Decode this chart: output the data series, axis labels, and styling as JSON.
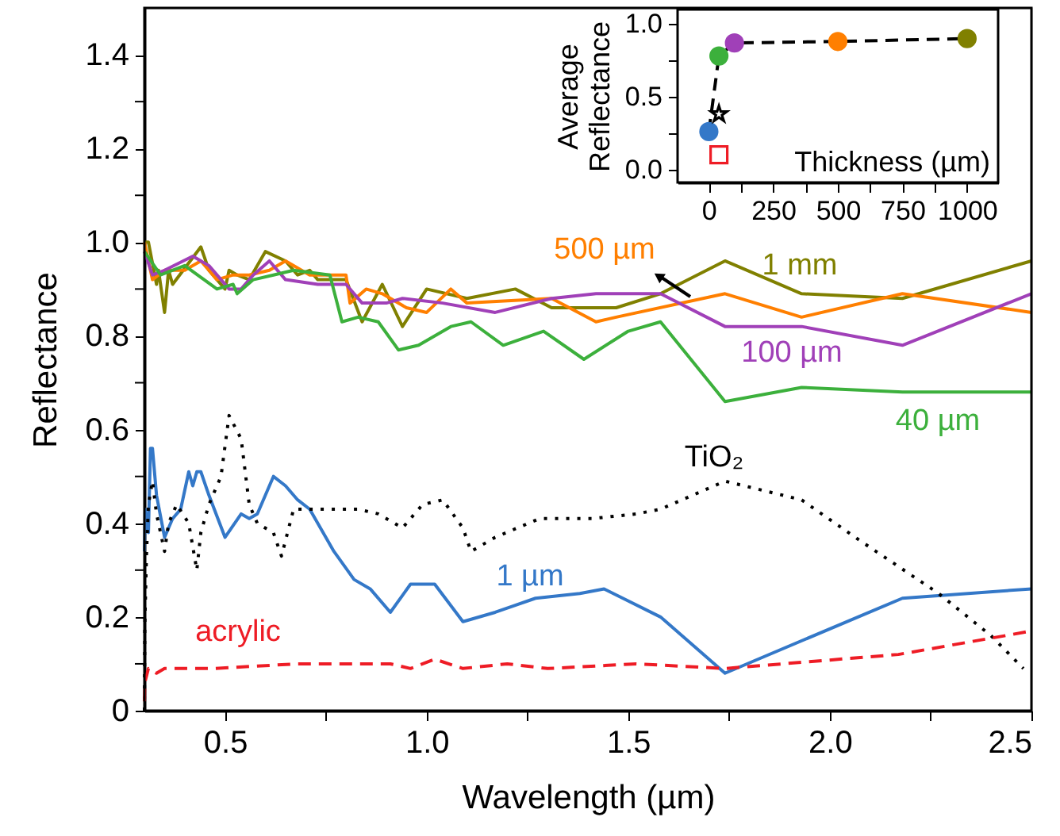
{
  "chart_data": [
    {
      "type": "line",
      "xlabel": "Wavelength (µm)",
      "ylabel": "Reflectance",
      "xlim": [
        0.3,
        2.5
      ],
      "ylim": [
        0,
        1.5
      ],
      "grid": false,
      "xticks": [
        0.5,
        {
          "value": 0.75,
          "label": null
        },
        {
          "value": 1,
          "label": "1.0"
        },
        {
          "value": 1.25,
          "label": null
        },
        1.5,
        {
          "value": 1.75,
          "label": null
        },
        {
          "value": 2,
          "label": "2.0"
        },
        {
          "value": 2.25,
          "label": null
        },
        2.5
      ],
      "yticks": [
        0,
        {
          "value": 0.1,
          "label": null
        },
        0.2,
        {
          "value": 0.3,
          "label": null
        },
        0.4,
        {
          "value": 0.5,
          "label": null
        },
        0.6,
        {
          "value": 0.7,
          "label": null
        },
        0.8,
        {
          "value": 0.9,
          "label": null
        },
        {
          "value": 1,
          "label": "1.0"
        },
        {
          "value": 1.1,
          "label": null
        },
        1.2,
        {
          "value": 1.3,
          "label": null
        },
        1.4
      ],
      "series": [
        {
          "name": "1 mm",
          "color": "#808000",
          "line_style": "solid",
          "x": [
            0.3,
            0.31,
            0.33,
            0.335,
            0.35,
            0.36,
            0.37,
            0.44,
            0.46,
            0.5,
            0.51,
            0.53,
            0.56,
            0.6,
            0.65,
            0.68,
            0.71,
            0.73,
            0.8,
            0.84,
            0.89,
            0.94,
            1.0,
            1.1,
            1.22,
            1.31,
            1.42,
            1.47,
            1.58,
            1.74,
            1.93,
            2.18,
            2.5
          ],
          "values": [
            1.0,
            1.0,
            0.91,
            0.94,
            0.85,
            0.94,
            0.91,
            0.99,
            0.94,
            0.9,
            0.94,
            0.93,
            0.92,
            0.98,
            0.96,
            0.93,
            0.94,
            0.92,
            0.92,
            0.83,
            0.91,
            0.82,
            0.9,
            0.88,
            0.9,
            0.86,
            0.86,
            0.86,
            0.89,
            0.96,
            0.89,
            0.88,
            0.96
          ]
        },
        {
          "name": "500 µm",
          "color": "#ff7f00",
          "line_style": "solid",
          "x": [
            0.3,
            0.32,
            0.35,
            0.4,
            0.44,
            0.48,
            0.52,
            0.56,
            0.61,
            0.65,
            0.71,
            0.8,
            0.81,
            0.85,
            0.89,
            0.95,
            1.0,
            1.06,
            1.1,
            1.31,
            1.42,
            1.47,
            1.74,
            1.93,
            2.18,
            2.5
          ],
          "values": [
            1.0,
            0.92,
            0.94,
            0.94,
            0.96,
            0.92,
            0.93,
            0.93,
            0.94,
            0.96,
            0.93,
            0.93,
            0.87,
            0.9,
            0.89,
            0.86,
            0.85,
            0.9,
            0.87,
            0.88,
            0.83,
            0.84,
            0.89,
            0.84,
            0.89,
            0.85
          ]
        },
        {
          "name": "100 µm",
          "color": "#a040b8",
          "line_style": "solid",
          "x": [
            0.3,
            0.32,
            0.35,
            0.42,
            0.46,
            0.51,
            0.54,
            0.57,
            0.61,
            0.65,
            0.73,
            0.8,
            0.84,
            0.9,
            0.94,
            1.04,
            1.17,
            1.31,
            1.42,
            1.47,
            1.58,
            1.74,
            1.93,
            2.18,
            2.5
          ],
          "values": [
            0.98,
            0.93,
            0.94,
            0.97,
            0.95,
            0.9,
            0.9,
            0.93,
            0.96,
            0.92,
            0.91,
            0.91,
            0.87,
            0.87,
            0.88,
            0.87,
            0.85,
            0.88,
            0.89,
            0.89,
            0.89,
            0.82,
            0.82,
            0.78,
            0.89
          ]
        },
        {
          "name": "40 µm",
          "color": "#3cb03c",
          "line_style": "solid",
          "x": [
            0.3,
            0.34,
            0.4,
            0.48,
            0.52,
            0.53,
            0.57,
            0.62,
            0.67,
            0.76,
            0.79,
            0.83,
            0.88,
            0.93,
            0.98,
            1.06,
            1.11,
            1.19,
            1.29,
            1.39,
            1.5,
            1.58,
            1.74,
            1.93,
            2.18,
            2.5
          ],
          "values": [
            0.98,
            0.93,
            0.95,
            0.9,
            0.91,
            0.89,
            0.92,
            0.93,
            0.94,
            0.93,
            0.83,
            0.84,
            0.83,
            0.77,
            0.78,
            0.82,
            0.83,
            0.78,
            0.81,
            0.75,
            0.81,
            0.83,
            0.66,
            0.69,
            0.68,
            0.68
          ]
        },
        {
          "name": "1 µm",
          "color": "#3478c8",
          "line_style": "solid",
          "x": [
            0.3,
            0.302,
            0.31,
            0.315,
            0.32,
            0.33,
            0.35,
            0.37,
            0.39,
            0.41,
            0.42,
            0.43,
            0.44,
            0.46,
            0.5,
            0.54,
            0.56,
            0.58,
            0.62,
            0.65,
            0.68,
            0.71,
            0.77,
            0.82,
            0.86,
            0.91,
            0.96,
            1.02,
            1.09,
            1.17,
            1.27,
            1.38,
            1.44,
            1.58,
            1.74,
            2.18,
            2.5
          ],
          "values": [
            0.34,
            0.43,
            0.38,
            0.56,
            0.56,
            0.46,
            0.37,
            0.41,
            0.43,
            0.51,
            0.48,
            0.51,
            0.51,
            0.46,
            0.37,
            0.42,
            0.41,
            0.42,
            0.5,
            0.48,
            0.45,
            0.43,
            0.34,
            0.28,
            0.26,
            0.21,
            0.27,
            0.27,
            0.19,
            0.21,
            0.24,
            0.25,
            0.26,
            0.2,
            0.08,
            0.24,
            0.26
          ]
        },
        {
          "name": "TiO₂",
          "color": "#000000",
          "line_style": "dotted",
          "x": [
            0.3,
            0.301,
            0.305,
            0.31,
            0.32,
            0.33,
            0.35,
            0.36,
            0.38,
            0.41,
            0.43,
            0.44,
            0.46,
            0.49,
            0.51,
            0.54,
            0.56,
            0.58,
            0.62,
            0.64,
            0.67,
            0.74,
            0.83,
            0.88,
            0.94,
            0.99,
            1.04,
            1.09,
            1.11,
            1.17,
            1.28,
            1.41,
            1.52,
            1.58,
            1.74,
            1.93,
            2.08,
            2.27,
            2.4,
            2.48
          ],
          "values": [
            0.0,
            0.18,
            0.33,
            0.44,
            0.49,
            0.42,
            0.34,
            0.4,
            0.44,
            0.4,
            0.3,
            0.38,
            0.44,
            0.5,
            0.63,
            0.58,
            0.44,
            0.4,
            0.38,
            0.33,
            0.43,
            0.43,
            0.43,
            0.42,
            0.39,
            0.44,
            0.45,
            0.39,
            0.34,
            0.37,
            0.41,
            0.41,
            0.42,
            0.43,
            0.49,
            0.45,
            0.36,
            0.25,
            0.16,
            0.09
          ]
        },
        {
          "name": "acrylic",
          "color": "#ee1c25",
          "line_style": "dashed",
          "x": [
            0.3,
            0.301,
            0.31,
            0.33,
            0.35,
            0.4,
            0.47,
            0.68,
            0.84,
            0.91,
            0.96,
            1.02,
            1.09,
            1.2,
            1.3,
            1.52,
            1.74,
            2.17,
            2.5
          ],
          "values": [
            0.02,
            0.06,
            0.09,
            0.08,
            0.09,
            0.09,
            0.09,
            0.1,
            0.1,
            0.1,
            0.09,
            0.11,
            0.09,
            0.1,
            0.09,
            0.1,
            0.09,
            0.12,
            0.17
          ]
        }
      ]
    },
    {
      "type": "line",
      "xlabel": "Thickness (µm)",
      "ylabel": "Average Reflectance",
      "xlim": [
        -120,
        1120
      ],
      "ylim": [
        -0.09,
        1.1
      ],
      "xticks": [
        0,
        {
          "value": 125,
          "label": null
        },
        250,
        {
          "value": 375,
          "label": null
        },
        500,
        {
          "value": 625,
          "label": null
        },
        750,
        {
          "value": 875,
          "label": null
        },
        1000
      ],
      "yticks": [
        {
          "value": 0,
          "label": "0.0"
        },
        {
          "value": 0.25,
          "label": null
        },
        0.5,
        {
          "value": 0.75,
          "label": null
        },
        {
          "value": 1,
          "label": "1.0"
        }
      ],
      "series": [
        {
          "type": "line",
          "color": "#000000",
          "line_style": "dashed",
          "marker": "circle",
          "x": [
            1,
            40,
            100,
            500,
            1000
          ],
          "values": [
            0.26,
            0.78,
            0.87,
            0.88,
            0.9
          ],
          "colors": [
            "#3478c8",
            "#3cb03c",
            "#a040b8",
            "#ff7f00",
            "#808000"
          ]
        },
        {
          "type": "scatter",
          "color": "#000000",
          "marker": "star",
          "x": [
            40
          ],
          "values": [
            0.38
          ]
        },
        {
          "type": "scatter",
          "color": "#ee1c25",
          "marker": "square",
          "x": [
            40
          ],
          "values": [
            0.1
          ]
        }
      ]
    }
  ]
}
